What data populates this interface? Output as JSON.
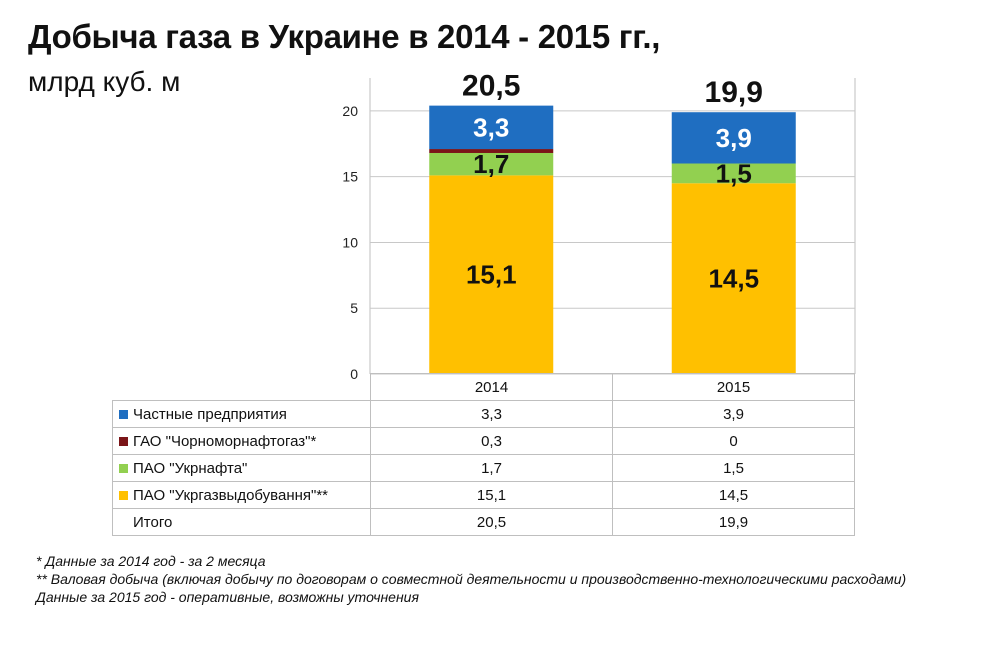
{
  "header": {
    "title": "Добыча газа в Украине в 2014 - 2015 гг.,",
    "subtitle": "млрд куб. м"
  },
  "chart_data": {
    "type": "bar",
    "stacked": true,
    "categories": [
      "2014",
      "2015"
    ],
    "ylim": [
      0,
      22.5
    ],
    "yticks": [
      "0",
      "5",
      "10",
      "15",
      "20"
    ],
    "grid": true,
    "series": [
      {
        "name": "ПАО \"Укргазвыдобування\"**",
        "values": [
          15.1,
          14.5
        ],
        "labels": [
          "15,1",
          "14,5"
        ],
        "color": "#FFC000",
        "label_color": "#111111"
      },
      {
        "name": "ПАО \"Укрнафта\"",
        "values": [
          1.7,
          1.5
        ],
        "labels": [
          "1,7",
          "1,5"
        ],
        "color": "#92D050",
        "label_color": "#111111"
      },
      {
        "name": "ГАО \"Чорноморнафтогаз\"*",
        "values": [
          0.3,
          0
        ],
        "labels": [
          "",
          ""
        ],
        "color": "#7B1518",
        "label_color": "#ffffff"
      },
      {
        "name": "Частные предприятия",
        "values": [
          3.3,
          3.9
        ],
        "labels": [
          "3,3",
          "3,9"
        ],
        "color": "#1F6EC1",
        "label_color": "#ffffff"
      }
    ],
    "totals": [
      "20,5",
      "19,9"
    ]
  },
  "table": {
    "columns": [
      "2014",
      "2015"
    ],
    "rows": [
      {
        "label": "Частные предприятия",
        "color": "#1F6EC1",
        "values": [
          "3,3",
          "3,9"
        ]
      },
      {
        "label": "ГАО \"Чорноморнафтогаз\"*",
        "color": "#7B1518",
        "values": [
          "0,3",
          "0"
        ]
      },
      {
        "label": "ПАО \"Укрнафта\"",
        "color": "#92D050",
        "values": [
          "1,7",
          "1,5"
        ]
      },
      {
        "label": "ПАО \"Укргазвыдобування\"**",
        "color": "#FFC000",
        "values": [
          "15,1",
          "14,5"
        ]
      },
      {
        "label": "Итого",
        "color": "",
        "values": [
          "20,5",
          "19,9"
        ]
      }
    ]
  },
  "notes": [
    "* Данные за 2014 год - за 2 месяца",
    "**  Валовая добыча (включая добычу по договорам о совместной деятельности и производственно-технологическими расходами)",
    "Данные за 2015 год - оперативные, возможны уточнения"
  ]
}
